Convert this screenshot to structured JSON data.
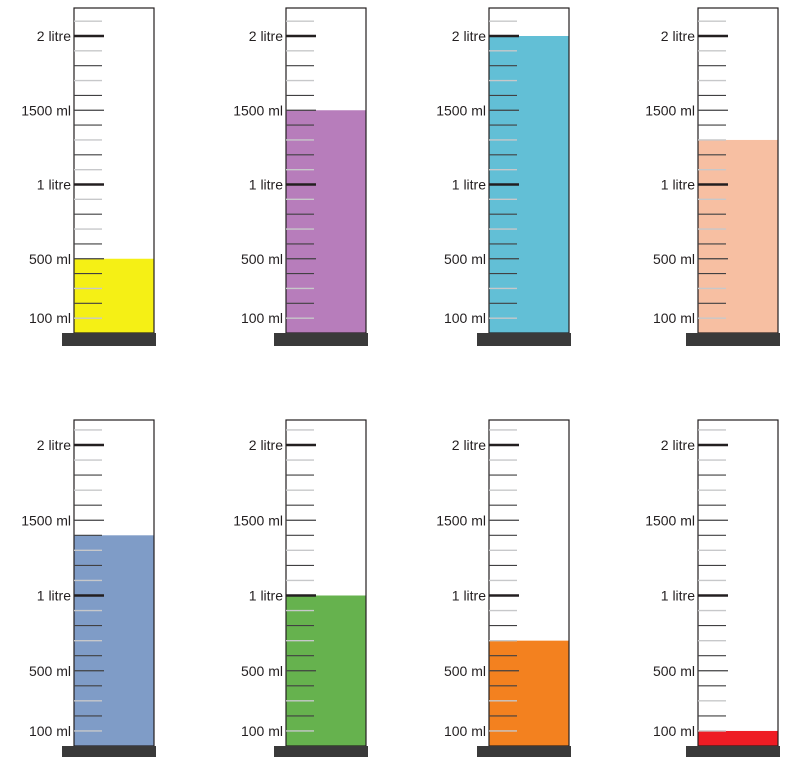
{
  "scale": {
    "capacity_ml": 2200,
    "minor_step_ml": 100,
    "labels": [
      {
        "ml": 100,
        "text": "100 ml"
      },
      {
        "ml": 500,
        "text": "500 ml"
      },
      {
        "ml": 1000,
        "text": "1 litre"
      },
      {
        "ml": 1500,
        "text": "1500 ml"
      },
      {
        "ml": 2000,
        "text": "2 litre"
      }
    ]
  },
  "cylinders": [
    {
      "name": "yellow",
      "fill_ml": 500,
      "color": "#f5f015"
    },
    {
      "name": "purple",
      "fill_ml": 1500,
      "color": "#b77dbb"
    },
    {
      "name": "cyan",
      "fill_ml": 2000,
      "color": "#62bfd6"
    },
    {
      "name": "peach",
      "fill_ml": 1300,
      "color": "#f7bfa2"
    },
    {
      "name": "blue",
      "fill_ml": 1400,
      "color": "#7f9cc7"
    },
    {
      "name": "green",
      "fill_ml": 1000,
      "color": "#66b24e"
    },
    {
      "name": "orange",
      "fill_ml": 700,
      "color": "#f3811f"
    },
    {
      "name": "red",
      "fill_ml": 100,
      "color": "#ee1c24"
    }
  ],
  "colors": {
    "outline": "#231f20",
    "base": "#3a3a3a",
    "tick_dark": "#414042",
    "tick_light": "#c7c8ca"
  }
}
